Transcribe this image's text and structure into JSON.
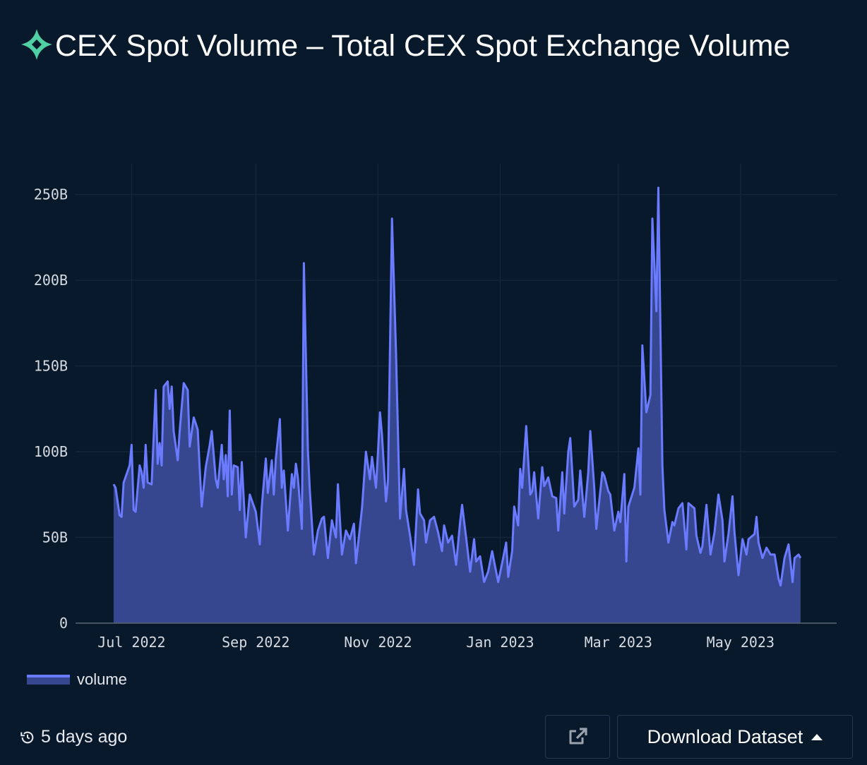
{
  "header": {
    "title": "CEX Spot Volume – Total CEX Spot Exchange Volume",
    "logo_icon": "four-point-star-logo",
    "logo_color": "#4fd1a5"
  },
  "footer": {
    "updated": "5 days ago",
    "updated_icon": "history-icon",
    "share_icon": "external-link-icon",
    "download_label": "Download Dataset",
    "download_caret_icon": "caret-up-icon"
  },
  "colors": {
    "background": "#07192a",
    "line": "#6b7bff",
    "fill": "#36468f"
  },
  "chart_data": {
    "type": "area",
    "title": "CEX Spot Volume – Total CEX Spot Exchange Volume",
    "xlabel": "",
    "ylabel": "",
    "xlim": [
      "2022-06-03",
      "2023-06-18"
    ],
    "ylim": [
      0,
      268
    ],
    "grid": true,
    "legend": "bottom-left",
    "x_ticks": [
      {
        "date": "2022-07-01",
        "label": "Jul 2022"
      },
      {
        "date": "2022-09-01",
        "label": "Sep 2022"
      },
      {
        "date": "2022-11-01",
        "label": "Nov 2022"
      },
      {
        "date": "2023-01-01",
        "label": "Jan 2023"
      },
      {
        "date": "2023-03-01",
        "label": "Mar 2023"
      },
      {
        "date": "2023-05-01",
        "label": "May 2023"
      }
    ],
    "y_ticks": [
      {
        "value": 0,
        "label": "0"
      },
      {
        "value": 50,
        "label": "50B"
      },
      {
        "value": 100,
        "label": "100B"
      },
      {
        "value": 150,
        "label": "150B"
      },
      {
        "value": 200,
        "label": "200B"
      },
      {
        "value": 250,
        "label": "250B"
      }
    ],
    "series": [
      {
        "name": "volume",
        "unit": "B",
        "points": [
          [
            "2022-06-22",
            81
          ],
          [
            "2022-06-23",
            79
          ],
          [
            "2022-06-25",
            63
          ],
          [
            "2022-06-26",
            62
          ],
          [
            "2022-06-27",
            82
          ],
          [
            "2022-06-30",
            92
          ],
          [
            "2022-07-01",
            104
          ],
          [
            "2022-07-02",
            66
          ],
          [
            "2022-07-03",
            65
          ],
          [
            "2022-07-05",
            92
          ],
          [
            "2022-07-06",
            88
          ],
          [
            "2022-07-07",
            79
          ],
          [
            "2022-07-08",
            104
          ],
          [
            "2022-07-09",
            82
          ],
          [
            "2022-07-11",
            81
          ],
          [
            "2022-07-13",
            136
          ],
          [
            "2022-07-14",
            93
          ],
          [
            "2022-07-15",
            105
          ],
          [
            "2022-07-16",
            92
          ],
          [
            "2022-07-17",
            138
          ],
          [
            "2022-07-19",
            141
          ],
          [
            "2022-07-20",
            125
          ],
          [
            "2022-07-21",
            138
          ],
          [
            "2022-07-22",
            112
          ],
          [
            "2022-07-24",
            95
          ],
          [
            "2022-07-25",
            112
          ],
          [
            "2022-07-27",
            140
          ],
          [
            "2022-07-29",
            136
          ],
          [
            "2022-07-30",
            103
          ],
          [
            "2022-08-01",
            120
          ],
          [
            "2022-08-03",
            113
          ],
          [
            "2022-08-04",
            90
          ],
          [
            "2022-08-05",
            68
          ],
          [
            "2022-08-07",
            91
          ],
          [
            "2022-08-09",
            104
          ],
          [
            "2022-08-10",
            112
          ],
          [
            "2022-08-12",
            84
          ],
          [
            "2022-08-13",
            79
          ],
          [
            "2022-08-15",
            104
          ],
          [
            "2022-08-16",
            84
          ],
          [
            "2022-08-17",
            98
          ],
          [
            "2022-08-18",
            74
          ],
          [
            "2022-08-19",
            124
          ],
          [
            "2022-08-20",
            75
          ],
          [
            "2022-08-21",
            92
          ],
          [
            "2022-08-23",
            91
          ],
          [
            "2022-08-24",
            66
          ],
          [
            "2022-08-25",
            94
          ],
          [
            "2022-08-27",
            50
          ],
          [
            "2022-08-29",
            75
          ],
          [
            "2022-09-01",
            65
          ],
          [
            "2022-09-03",
            46
          ],
          [
            "2022-09-04",
            68
          ],
          [
            "2022-09-06",
            96
          ],
          [
            "2022-09-07",
            76
          ],
          [
            "2022-09-09",
            95
          ],
          [
            "2022-09-10",
            75
          ],
          [
            "2022-09-11",
            96
          ],
          [
            "2022-09-13",
            119
          ],
          [
            "2022-09-14",
            79
          ],
          [
            "2022-09-15",
            89
          ],
          [
            "2022-09-17",
            54
          ],
          [
            "2022-09-19",
            87
          ],
          [
            "2022-09-20",
            79
          ],
          [
            "2022-09-21",
            93
          ],
          [
            "2022-09-22",
            85
          ],
          [
            "2022-09-24",
            55
          ],
          [
            "2022-09-25",
            210
          ],
          [
            "2022-09-27",
            101
          ],
          [
            "2022-09-28",
            77
          ],
          [
            "2022-09-30",
            40
          ],
          [
            "2022-10-02",
            54
          ],
          [
            "2022-10-04",
            61
          ],
          [
            "2022-10-05",
            62
          ],
          [
            "2022-10-07",
            38
          ],
          [
            "2022-10-09",
            60
          ],
          [
            "2022-10-11",
            50
          ],
          [
            "2022-10-12",
            81
          ],
          [
            "2022-10-14",
            40
          ],
          [
            "2022-10-16",
            54
          ],
          [
            "2022-10-18",
            49
          ],
          [
            "2022-10-20",
            58
          ],
          [
            "2022-10-21",
            35
          ],
          [
            "2022-10-24",
            67
          ],
          [
            "2022-10-26",
            100
          ],
          [
            "2022-10-28",
            84
          ],
          [
            "2022-10-29",
            97
          ],
          [
            "2022-10-31",
            79
          ],
          [
            "2022-11-01",
            100
          ],
          [
            "2022-11-02",
            123
          ],
          [
            "2022-11-03",
            110
          ],
          [
            "2022-11-05",
            71
          ],
          [
            "2022-11-06",
            83
          ],
          [
            "2022-11-08",
            236
          ],
          [
            "2022-11-10",
            158
          ],
          [
            "2022-11-12",
            61
          ],
          [
            "2022-11-14",
            90
          ],
          [
            "2022-11-15",
            66
          ],
          [
            "2022-11-17",
            51
          ],
          [
            "2022-11-19",
            34
          ],
          [
            "2022-11-21",
            78
          ],
          [
            "2022-11-22",
            64
          ],
          [
            "2022-11-24",
            60
          ],
          [
            "2022-11-25",
            47
          ],
          [
            "2022-11-27",
            60
          ],
          [
            "2022-11-29",
            62
          ],
          [
            "2022-12-01",
            53
          ],
          [
            "2022-12-03",
            42
          ],
          [
            "2022-12-04",
            57
          ],
          [
            "2022-12-06",
            47
          ],
          [
            "2022-12-08",
            51
          ],
          [
            "2022-12-10",
            34
          ],
          [
            "2022-12-12",
            59
          ],
          [
            "2022-12-13",
            69
          ],
          [
            "2022-12-15",
            50
          ],
          [
            "2022-12-17",
            30
          ],
          [
            "2022-12-19",
            49
          ],
          [
            "2022-12-20",
            36
          ],
          [
            "2022-12-22",
            39
          ],
          [
            "2022-12-24",
            24
          ],
          [
            "2022-12-26",
            30
          ],
          [
            "2022-12-28",
            42
          ],
          [
            "2022-12-29",
            36
          ],
          [
            "2022-12-31",
            24
          ],
          [
            "2023-01-02",
            35
          ],
          [
            "2023-01-04",
            47
          ],
          [
            "2023-01-05",
            27
          ],
          [
            "2023-01-07",
            42
          ],
          [
            "2023-01-08",
            68
          ],
          [
            "2023-01-10",
            57
          ],
          [
            "2023-01-11",
            90
          ],
          [
            "2023-01-12",
            79
          ],
          [
            "2023-01-14",
            115
          ],
          [
            "2023-01-16",
            75
          ],
          [
            "2023-01-17",
            77
          ],
          [
            "2023-01-18",
            88
          ],
          [
            "2023-01-20",
            61
          ],
          [
            "2023-01-22",
            91
          ],
          [
            "2023-01-23",
            80
          ],
          [
            "2023-01-25",
            85
          ],
          [
            "2023-01-27",
            74
          ],
          [
            "2023-01-29",
            73
          ],
          [
            "2023-01-30",
            54
          ],
          [
            "2023-02-01",
            88
          ],
          [
            "2023-02-02",
            64
          ],
          [
            "2023-02-04",
            100
          ],
          [
            "2023-02-05",
            108
          ],
          [
            "2023-02-07",
            68
          ],
          [
            "2023-02-09",
            72
          ],
          [
            "2023-02-10",
            89
          ],
          [
            "2023-02-12",
            62
          ],
          [
            "2023-02-14",
            88
          ],
          [
            "2023-02-15",
            112
          ],
          [
            "2023-02-17",
            79
          ],
          [
            "2023-02-18",
            55
          ],
          [
            "2023-02-21",
            88
          ],
          [
            "2023-02-22",
            86
          ],
          [
            "2023-02-24",
            77
          ],
          [
            "2023-02-25",
            75
          ],
          [
            "2023-02-27",
            54
          ],
          [
            "2023-03-01",
            65
          ],
          [
            "2023-03-02",
            59
          ],
          [
            "2023-03-04",
            87
          ],
          [
            "2023-03-05",
            36
          ],
          [
            "2023-03-06",
            68
          ],
          [
            "2023-03-09",
            79
          ],
          [
            "2023-03-11",
            102
          ],
          [
            "2023-03-12",
            75
          ],
          [
            "2023-03-13",
            162
          ],
          [
            "2023-03-15",
            123
          ],
          [
            "2023-03-17",
            133
          ],
          [
            "2023-03-18",
            236
          ],
          [
            "2023-03-20",
            182
          ],
          [
            "2023-03-21",
            254
          ],
          [
            "2023-03-23",
            92
          ],
          [
            "2023-03-24",
            66
          ],
          [
            "2023-03-26",
            47
          ],
          [
            "2023-03-28",
            59
          ],
          [
            "2023-03-29",
            57
          ],
          [
            "2023-03-31",
            67
          ],
          [
            "2023-04-02",
            70
          ],
          [
            "2023-04-04",
            43
          ],
          [
            "2023-04-05",
            70
          ],
          [
            "2023-04-08",
            67
          ],
          [
            "2023-04-09",
            51
          ],
          [
            "2023-04-11",
            41
          ],
          [
            "2023-04-12",
            45
          ],
          [
            "2023-04-14",
            69
          ],
          [
            "2023-04-16",
            40
          ],
          [
            "2023-04-18",
            53
          ],
          [
            "2023-04-20",
            75
          ],
          [
            "2023-04-22",
            60
          ],
          [
            "2023-04-23",
            36
          ],
          [
            "2023-04-25",
            52
          ],
          [
            "2023-04-27",
            74
          ],
          [
            "2023-04-28",
            53
          ],
          [
            "2023-04-30",
            28
          ],
          [
            "2023-05-02",
            49
          ],
          [
            "2023-05-04",
            40
          ],
          [
            "2023-05-05",
            49
          ],
          [
            "2023-05-08",
            52
          ],
          [
            "2023-05-09",
            62
          ],
          [
            "2023-05-10",
            47
          ],
          [
            "2023-05-12",
            38
          ],
          [
            "2023-05-14",
            44
          ],
          [
            "2023-05-16",
            40
          ],
          [
            "2023-05-18",
            40
          ],
          [
            "2023-05-20",
            26
          ],
          [
            "2023-05-21",
            22
          ],
          [
            "2023-05-23",
            38
          ],
          [
            "2023-05-25",
            46
          ],
          [
            "2023-05-27",
            24
          ],
          [
            "2023-05-28",
            38
          ],
          [
            "2023-05-30",
            40
          ],
          [
            "2023-05-31",
            38
          ]
        ]
      }
    ]
  }
}
